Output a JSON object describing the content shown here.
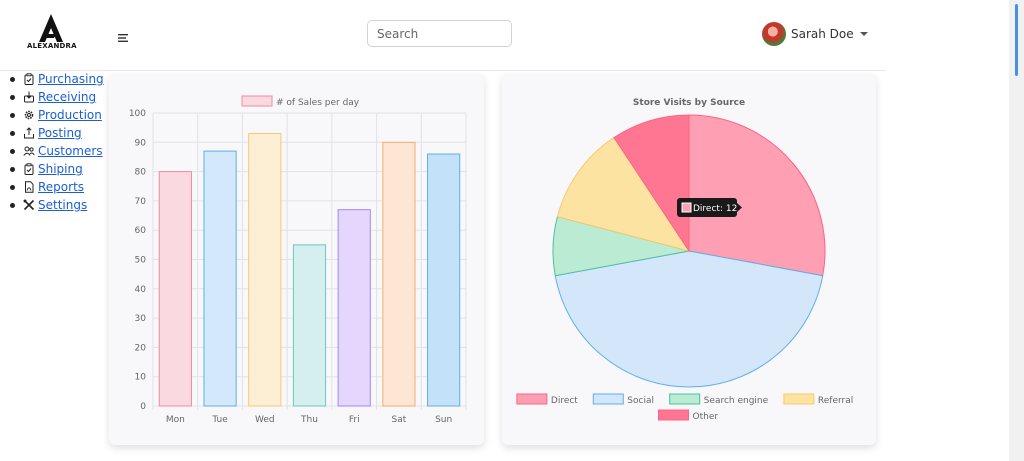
{
  "app": {
    "logo_text": "ALEXANDRA"
  },
  "search": {
    "placeholder": "Search",
    "value": ""
  },
  "user": {
    "name": "Sarah Doe"
  },
  "nav": [
    {
      "label": "Purchasing",
      "icon": "clipboard-check-icon"
    },
    {
      "label": "Receiving",
      "icon": "inbox-download-icon"
    },
    {
      "label": "Production",
      "icon": "gear-icon"
    },
    {
      "label": "Posting",
      "icon": "upload-icon"
    },
    {
      "label": "Customers",
      "icon": "people-icon"
    },
    {
      "label": "Shiping",
      "icon": "clipboard-check-icon"
    },
    {
      "label": "Reports",
      "icon": "pdf-file-icon"
    },
    {
      "label": "Settings",
      "icon": "tools-icon"
    }
  ],
  "chart_data": [
    {
      "type": "bar",
      "title": "",
      "categories": [
        "Mon",
        "Tue",
        "Wed",
        "Thu",
        "Fri",
        "Sat",
        "Sun"
      ],
      "series": [
        {
          "name": "# of Sales per day",
          "values": [
            80,
            87,
            93,
            55,
            67,
            90,
            86
          ]
        }
      ],
      "xlabel": "",
      "ylabel": "",
      "ylim": [
        0,
        100
      ],
      "yticks": [
        0,
        10,
        20,
        30,
        40,
        50,
        60,
        70,
        80,
        90,
        100
      ],
      "grid": true,
      "legend": "top",
      "colors": {
        "fill": [
          "#fbd9e1",
          "#d3e8fa",
          "#fdefd4",
          "#d5eeee",
          "#e4d6fd",
          "#fde7d4",
          "#c3e1f8"
        ],
        "stroke": [
          "#f18aa4",
          "#5fb0e6",
          "#f7c96e",
          "#6cc5c5",
          "#a685f5",
          "#f6ad6a",
          "#5fb0e6"
        ]
      }
    },
    {
      "type": "pie",
      "title": "Store Visits by Source",
      "categories": [
        "Direct",
        "Social",
        "Search engine",
        "Referral",
        "Other"
      ],
      "values": [
        12,
        19,
        3,
        5,
        4
      ],
      "legend": "bottom",
      "tooltip": {
        "label": "Direct",
        "value": "12"
      },
      "colors": {
        "fill": [
          "#fe9fb3",
          "#d3e6fa",
          "#bcebd3",
          "#fde3a2",
          "#ff7693"
        ],
        "stroke": [
          "#ff6384",
          "#5fb0e6",
          "#4bc0a0",
          "#f7c96e",
          "#ff6384"
        ]
      }
    }
  ]
}
